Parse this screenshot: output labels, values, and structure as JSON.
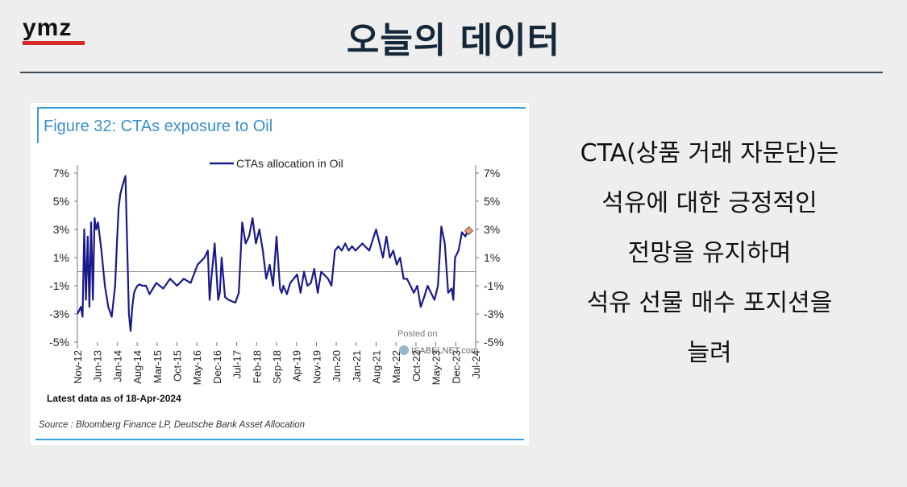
{
  "header": {
    "logo": "ymz",
    "title": "오늘의 데이터"
  },
  "figure": {
    "title": "Figure 32: CTAs exposure to Oil",
    "latest_note": "Latest data as of 18-Apr-2024",
    "source": "Source : Bloomberg Finance LP, Deutsche Bank Asset Allocation",
    "watermark_line1": "Posted on",
    "watermark_line2": "ISABELNET.com"
  },
  "description": {
    "lines": [
      "CTA(상품 거래 자문단)는",
      "석유에 대한 긍정적인",
      "전망을 유지하며",
      "석유 선물 매수 포지션을",
      "늘려"
    ]
  },
  "colors": {
    "accent_blue": "#3a8fc9",
    "series": "#1a1a8c",
    "logo_red": "#d62828",
    "marker": "#e8a07a"
  },
  "chart_data": {
    "type": "line",
    "legend": "CTAs allocation in Oil",
    "legend_position": "top-center",
    "y_ticks": [
      "7%",
      "5%",
      "3%",
      "1%",
      "-1%",
      "-3%",
      "-5%"
    ],
    "y_tick_values": [
      7,
      5,
      3,
      1,
      -1,
      -3,
      -5
    ],
    "ylim": [
      -5,
      7
    ],
    "x_ticks": [
      "Nov-12",
      "Jun-13",
      "Jan-14",
      "Aug-14",
      "Mar-15",
      "Oct-15",
      "May-16",
      "Dec-16",
      "Jul-17",
      "Feb-18",
      "Sep-18",
      "Apr-19",
      "Nov-19",
      "Jun-20",
      "Jan-21",
      "Aug-21",
      "Mar-22",
      "Oct-22",
      "May-23",
      "Dec-23",
      "Jul-24"
    ],
    "zero_line": true,
    "series": [
      {
        "name": "CTAs allocation in Oil",
        "x": [
          2012.9,
          2013.0,
          2013.05,
          2013.1,
          2013.15,
          2013.2,
          2013.25,
          2013.3,
          2013.35,
          2013.4,
          2013.45,
          2013.5,
          2013.55,
          2013.6,
          2013.7,
          2013.8,
          2013.9,
          2014.0,
          2014.05,
          2014.1,
          2014.15,
          2014.2,
          2014.3,
          2014.4,
          2014.45,
          2014.5,
          2014.55,
          2014.6,
          2014.65,
          2014.7,
          2014.8,
          2014.9,
          2015.0,
          2015.2,
          2015.4,
          2015.6,
          2015.8,
          2016.0,
          2016.2,
          2016.4,
          2016.6,
          2016.7,
          2016.75,
          2016.8,
          2016.9,
          2017.0,
          2017.05,
          2017.1,
          2017.2,
          2017.3,
          2017.5,
          2017.6,
          2017.7,
          2017.8,
          2017.9,
          2018.0,
          2018.1,
          2018.2,
          2018.3,
          2018.4,
          2018.5,
          2018.6,
          2018.7,
          2018.8,
          2018.85,
          2018.9,
          2019.0,
          2019.1,
          2019.2,
          2019.3,
          2019.4,
          2019.5,
          2019.6,
          2019.7,
          2019.8,
          2019.9,
          2020.0,
          2020.2,
          2020.3,
          2020.4,
          2020.5,
          2020.6,
          2020.7,
          2020.8,
          2020.9,
          2021.0,
          2021.2,
          2021.4,
          2021.6,
          2021.8,
          2021.9,
          2022.0,
          2022.1,
          2022.2,
          2022.3,
          2022.4,
          2022.5,
          2022.6,
          2022.7,
          2022.8,
          2022.9,
          2023.0,
          2023.1,
          2023.2,
          2023.3,
          2023.4,
          2023.5,
          2023.6,
          2023.7,
          2023.8,
          2023.85,
          2023.9,
          2024.0,
          2024.1,
          2024.2,
          2024.25,
          2024.3
        ],
        "y": [
          -3.0,
          -2.5,
          -3.2,
          3.0,
          -2.0,
          2.5,
          -2.5,
          3.5,
          -2.0,
          3.8,
          3.0,
          3.5,
          2.5,
          1.5,
          -1.0,
          -2.5,
          -3.2,
          -1.0,
          2.0,
          4.5,
          5.5,
          6.0,
          6.8,
          -3.0,
          -4.2,
          -2.5,
          -1.5,
          -1.2,
          -1.0,
          -0.9,
          -1.0,
          -1.0,
          -1.6,
          -0.8,
          -1.2,
          -0.5,
          -1.0,
          -0.5,
          -0.8,
          0.5,
          1.0,
          1.5,
          -2.0,
          -0.5,
          2.0,
          -2.0,
          -1.5,
          1.0,
          -1.8,
          -2.0,
          -2.2,
          -1.5,
          3.5,
          2.0,
          2.5,
          3.8,
          2.0,
          3.0,
          1.5,
          -0.5,
          0.5,
          -1.0,
          2.5,
          -1.2,
          -1.5,
          -1.0,
          -1.6,
          -0.8,
          -0.5,
          -0.2,
          -1.5,
          0.0,
          -1.0,
          -0.8,
          0.2,
          -1.5,
          0.0,
          -0.5,
          -1.0,
          1.5,
          1.8,
          1.5,
          2.0,
          1.5,
          1.8,
          1.5,
          2.0,
          1.5,
          3.0,
          1.0,
          2.5,
          1.0,
          1.5,
          0.5,
          1.0,
          -0.5,
          -0.5,
          -1.0,
          -1.5,
          -1.0,
          -2.5,
          -1.8,
          -1.0,
          -1.5,
          -2.0,
          -1.0,
          3.2,
          2.0,
          -1.5,
          -1.2,
          -2.0,
          1.0,
          1.5,
          2.8,
          2.5,
          2.8,
          2.9
        ]
      }
    ],
    "last_point": {
      "x": 2024.3,
      "y": 2.9
    }
  }
}
